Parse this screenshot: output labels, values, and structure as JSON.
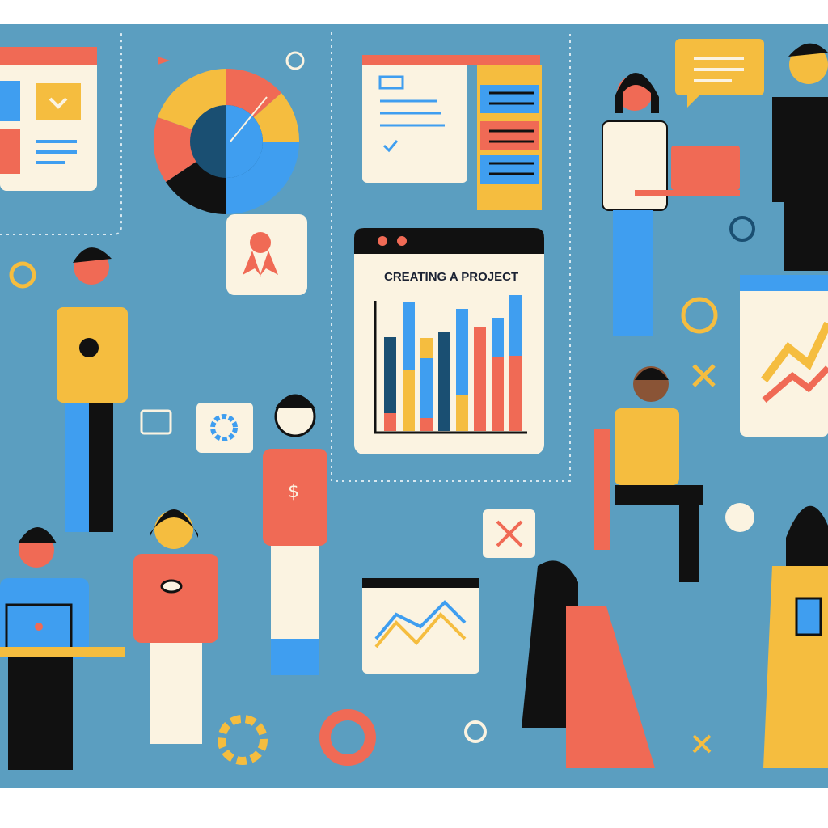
{
  "illustration": {
    "board_title": "CREATING A PROJECT",
    "colors": {
      "background": "#5b9ec0",
      "card": "#fbf3e1",
      "red": "#f06a55",
      "yellow": "#f5bd3f",
      "blue": "#3f9ef0",
      "navy": "#1a4f72",
      "black": "#111111"
    }
  }
}
